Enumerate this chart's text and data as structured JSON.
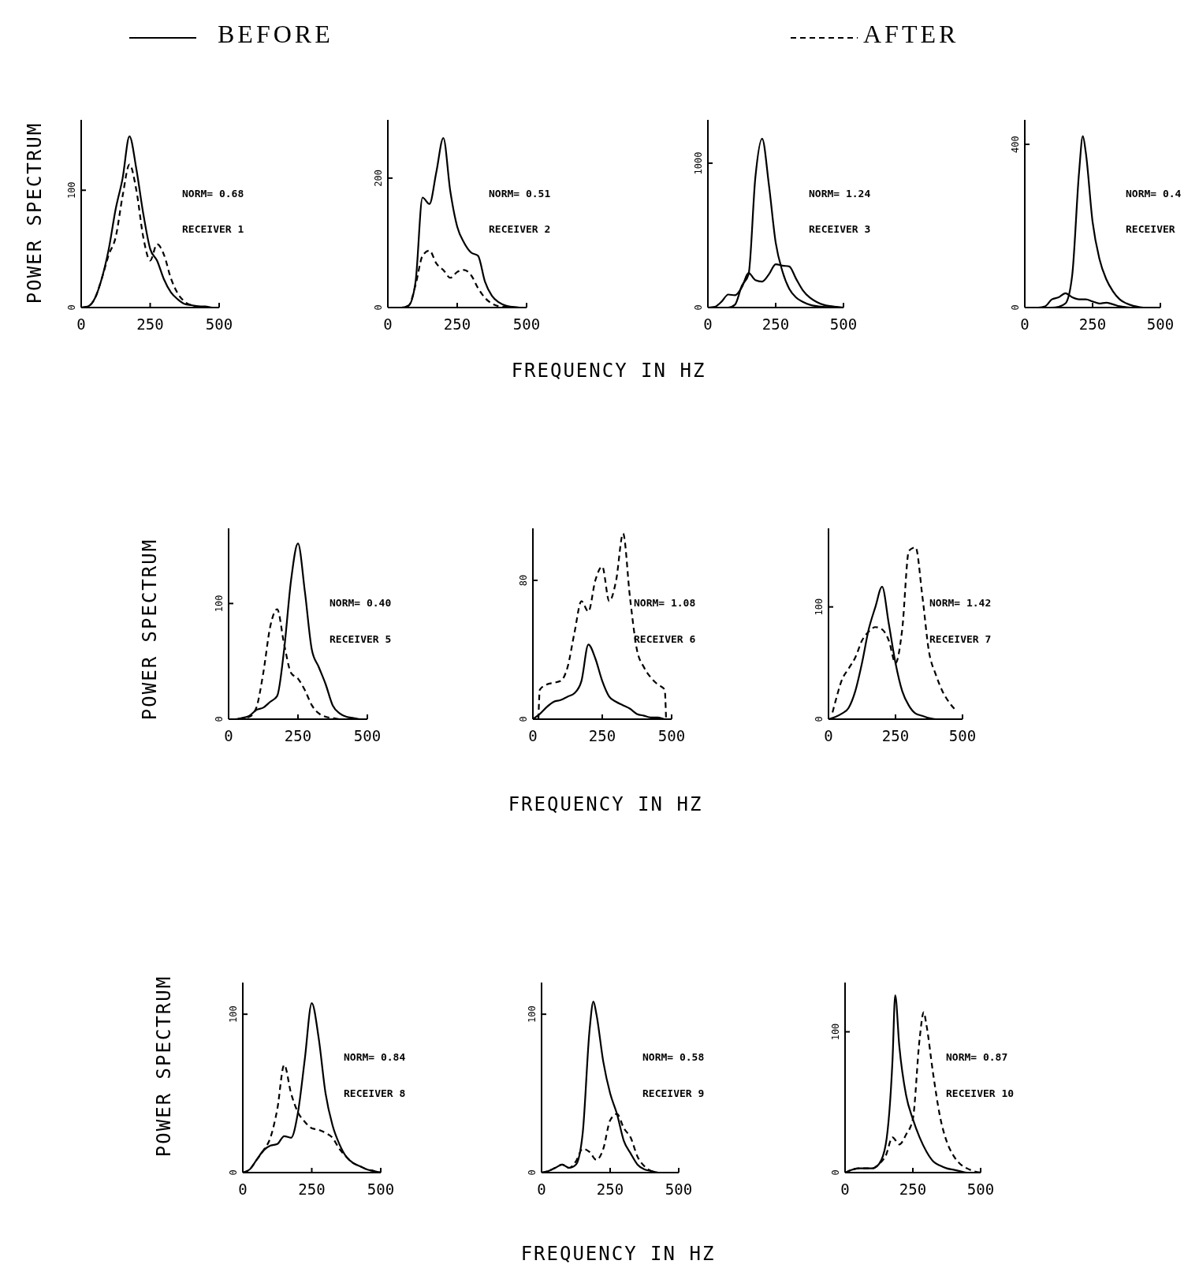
{
  "chart_data": [
    {
      "type": "line",
      "legend": "top",
      "ylabel": "POWER SPECTRUM",
      "x": [
        0,
        25,
        50,
        75,
        100,
        125,
        150,
        175,
        200,
        225,
        250,
        275,
        300,
        325,
        350,
        375,
        400,
        425,
        450,
        475,
        500
      ],
      "xlim": [
        0,
        500
      ],
      "xticks": [
        0,
        250,
        500
      ],
      "ylim": [
        0,
        160
      ],
      "yticks": [
        0,
        100
      ],
      "annotations": [
        "NORM= 0.68",
        "RECEIVER 1"
      ],
      "series": [
        {
          "name": "BEFORE",
          "color": "#000000",
          "line_style": "solid",
          "values": [
            0,
            1,
            8,
            25,
            50,
            84,
            110,
            146,
            118,
            80,
            50,
            40,
            24,
            13,
            7,
            3,
            2,
            1,
            1,
            0,
            0
          ]
        },
        {
          "name": "AFTER",
          "color": "#000000",
          "line_style": "dashed",
          "values": [
            0,
            1,
            8,
            25,
            45,
            60,
            95,
            122,
            100,
            60,
            40,
            54,
            45,
            25,
            12,
            5,
            2,
            1,
            0,
            0,
            0
          ]
        }
      ]
    },
    {
      "type": "line",
      "xlabel": "FREQUENCY IN HZ",
      "x": [
        0,
        25,
        50,
        75,
        100,
        125,
        150,
        175,
        200,
        225,
        250,
        275,
        300,
        325,
        350,
        375,
        400,
        425,
        450,
        475,
        500
      ],
      "xlim": [
        0,
        500
      ],
      "xticks": [
        0,
        250,
        500
      ],
      "ylim": [
        0,
        290
      ],
      "yticks": [
        0,
        200
      ],
      "annotations": [
        "NORM= 0.51",
        "RECEIVER 2"
      ],
      "series": [
        {
          "color": "#000000",
          "line_style": "solid",
          "values": [
            0,
            0,
            0,
            3,
            40,
            170,
            160,
            210,
            262,
            180,
            125,
            100,
            85,
            80,
            40,
            18,
            8,
            3,
            1,
            0,
            0
          ]
        },
        {
          "color": "#000000",
          "line_style": "dashed",
          "values": [
            0,
            0,
            0,
            3,
            35,
            80,
            88,
            68,
            58,
            46,
            55,
            58,
            50,
            30,
            15,
            6,
            2,
            1,
            0,
            0,
            0
          ]
        }
      ]
    },
    {
      "type": "line",
      "x": [
        0,
        25,
        50,
        75,
        100,
        125,
        150,
        175,
        200,
        225,
        250,
        275,
        300,
        325,
        350,
        375,
        400,
        425,
        450,
        475,
        500
      ],
      "xlim": [
        0,
        500
      ],
      "xticks": [
        0,
        250,
        500
      ],
      "ylim": [
        0,
        1300
      ],
      "yticks": [
        0,
        1000
      ],
      "annotations": [
        "NORM= 1.24",
        "RECEIVER 3"
      ],
      "series": [
        {
          "color": "#000000",
          "line_style": "solid",
          "values": [
            0,
            0,
            0,
            0,
            20,
            150,
            230,
            900,
            1170,
            850,
            450,
            250,
            130,
            70,
            40,
            20,
            10,
            5,
            2,
            0,
            0
          ]
        },
        {
          "color": "#000000",
          "line_style": "solid",
          "values": [
            0,
            5,
            40,
            90,
            85,
            140,
            240,
            190,
            180,
            230,
            300,
            290,
            285,
            200,
            120,
            70,
            40,
            20,
            10,
            5,
            0
          ]
        }
      ]
    },
    {
      "type": "line",
      "x": [
        0,
        25,
        50,
        75,
        100,
        125,
        150,
        175,
        200,
        225,
        250,
        275,
        300,
        325,
        350,
        375,
        400,
        425,
        450,
        475,
        500
      ],
      "xlim": [
        0,
        500
      ],
      "xticks": [
        0,
        250,
        500
      ],
      "ylim": [
        0,
        460
      ],
      "yticks": [
        0,
        400
      ],
      "annotations": [
        "NORM= 0.4",
        "RECEIVER"
      ],
      "series": [
        {
          "color": "#000000",
          "line_style": "solid",
          "x": [
            0,
            25,
            50,
            75,
            100,
            125,
            150,
            175,
            200,
            214,
            225,
            250,
            275,
            300,
            325,
            350,
            375,
            400,
            425,
            450,
            475,
            500
          ],
          "values": [
            0,
            0,
            0,
            0,
            0,
            2,
            10,
            80,
            330,
            420,
            380,
            210,
            120,
            70,
            40,
            20,
            10,
            4,
            1,
            0,
            0,
            0
          ]
        },
        {
          "color": "#000000",
          "line_style": "solid",
          "values": [
            0,
            0,
            0,
            3,
            20,
            25,
            35,
            25,
            20,
            20,
            15,
            10,
            12,
            8,
            3,
            1,
            0,
            0,
            0,
            0,
            0
          ]
        }
      ]
    },
    {
      "type": "line",
      "ylabel": "POWER SPECTRUM",
      "x": [
        0,
        25,
        50,
        75,
        100,
        125,
        150,
        175,
        200,
        225,
        250,
        275,
        300,
        325,
        350,
        375,
        400,
        425,
        450,
        475,
        500
      ],
      "xlim": [
        0,
        500
      ],
      "xticks": [
        0,
        250,
        500
      ],
      "ylim": [
        0,
        165
      ],
      "yticks": [
        0,
        100
      ],
      "annotations": [
        "NORM= 0.40",
        "RECEIVER 5"
      ],
      "series": [
        {
          "color": "#000000",
          "line_style": "solid",
          "values": [
            0,
            0,
            1,
            3,
            8,
            10,
            15,
            20,
            60,
            120,
            152,
            110,
            60,
            45,
            30,
            12,
            5,
            2,
            1,
            0,
            0
          ]
        },
        {
          "color": "#000000",
          "line_style": "dashed",
          "values": [
            0,
            0,
            1,
            2,
            10,
            40,
            80,
            95,
            65,
            40,
            35,
            25,
            12,
            5,
            2,
            1,
            0,
            0,
            0,
            0,
            0
          ]
        }
      ]
    },
    {
      "type": "line",
      "xlabel": "FREQUENCY IN HZ",
      "x": [
        0,
        25,
        50,
        75,
        100,
        125,
        150,
        175,
        200,
        225,
        250,
        275,
        300,
        325,
        350,
        375,
        400,
        425,
        450,
        475,
        500
      ],
      "xlim": [
        0,
        500
      ],
      "xticks": [
        0,
        250,
        500
      ],
      "ylim": [
        0,
        110
      ],
      "yticks": [
        0,
        80
      ],
      "annotations": [
        "NORM= 1.08",
        "RECEIVER 6"
      ],
      "series": [
        {
          "color": "#000000",
          "line_style": "solid",
          "values": [
            0,
            3,
            7,
            10,
            11,
            13,
            15,
            22,
            43,
            35,
            22,
            13,
            10,
            8,
            6,
            3,
            2,
            1,
            1,
            0,
            0
          ]
        },
        {
          "color": "#000000",
          "line_style": "dashed",
          "x": [
            20,
            25,
            50,
            75,
            100,
            125,
            150,
            175,
            200,
            225,
            250,
            275,
            300,
            325,
            350,
            375,
            400,
            425,
            450,
            475,
            480
          ],
          "values": [
            0,
            17,
            20,
            21,
            22,
            30,
            50,
            68,
            62,
            80,
            88,
            68,
            80,
            107,
            70,
            40,
            30,
            24,
            20,
            17,
            0
          ]
        }
      ]
    },
    {
      "type": "line",
      "x": [
        0,
        25,
        50,
        75,
        100,
        125,
        150,
        175,
        200,
        225,
        250,
        275,
        300,
        325,
        350,
        375,
        400,
        425,
        450,
        475,
        500
      ],
      "xlim": [
        0,
        500
      ],
      "xticks": [
        0,
        250,
        500
      ],
      "ylim": [
        0,
        170
      ],
      "yticks": [
        0,
        100
      ],
      "annotations": [
        "NORM= 1.42",
        "RECEIVER 7"
      ],
      "series": [
        {
          "color": "#000000",
          "line_style": "solid",
          "values": [
            0,
            2,
            5,
            10,
            25,
            50,
            80,
            100,
            118,
            85,
            50,
            25,
            12,
            5,
            3,
            1,
            0,
            0,
            0,
            0,
            0
          ]
        },
        {
          "color": "#000000",
          "line_style": "dashed",
          "x": [
            15,
            25,
            50,
            75,
            100,
            125,
            150,
            175,
            200,
            225,
            250,
            275,
            300,
            325,
            350,
            375,
            400,
            425,
            450,
            475
          ],
          "values": [
            6,
            15,
            35,
            45,
            55,
            70,
            78,
            82,
            80,
            70,
            50,
            80,
            150,
            153,
            110,
            60,
            40,
            25,
            15,
            8
          ]
        }
      ]
    },
    {
      "type": "line",
      "ylabel": "POWER SPECTRUM",
      "x": [
        0,
        25,
        50,
        75,
        100,
        125,
        150,
        175,
        200,
        225,
        250,
        275,
        300,
        325,
        350,
        375,
        400,
        425,
        450,
        475,
        500
      ],
      "xlim": [
        0,
        500
      ],
      "xticks": [
        0,
        250,
        500
      ],
      "ylim": [
        0,
        120
      ],
      "yticks": [
        0,
        100
      ],
      "annotations": [
        "NORM= 0.84",
        "RECEIVER 8"
      ],
      "series": [
        {
          "color": "#000000",
          "line_style": "solid",
          "values": [
            0,
            2,
            8,
            14,
            17,
            18,
            23,
            22,
            38,
            72,
            107,
            85,
            50,
            30,
            18,
            10,
            6,
            4,
            2,
            1,
            0
          ]
        },
        {
          "color": "#000000",
          "line_style": "dashed",
          "values": [
            0,
            2,
            8,
            14,
            22,
            40,
            68,
            50,
            38,
            32,
            28,
            27,
            25,
            22,
            15,
            10,
            6,
            4,
            2,
            1,
            0
          ]
        }
      ]
    },
    {
      "type": "line",
      "xlabel": "FREQUENCY IN HZ",
      "x": [
        0,
        25,
        50,
        75,
        100,
        125,
        150,
        175,
        200,
        225,
        250,
        275,
        300,
        325,
        350,
        375,
        400,
        425,
        450,
        475,
        500
      ],
      "xlim": [
        0,
        500
      ],
      "xticks": [
        0,
        250,
        500
      ],
      "ylim": [
        0,
        120
      ],
      "yticks": [
        0,
        100
      ],
      "annotations": [
        "NORM= 0.58",
        "RECEIVER 9"
      ],
      "series": [
        {
          "color": "#000000",
          "line_style": "solid",
          "x": [
            0,
            25,
            50,
            75,
            100,
            125,
            150,
            175,
            189,
            200,
            225,
            250,
            275,
            300,
            325,
            350,
            375,
            400,
            425,
            450,
            475,
            500
          ],
          "values": [
            0,
            1,
            3,
            5,
            3,
            5,
            25,
            90,
            108,
            100,
            70,
            50,
            37,
            20,
            12,
            5,
            2,
            1,
            0,
            0,
            0,
            0
          ]
        },
        {
          "color": "#000000",
          "line_style": "dashed",
          "values": [
            0,
            1,
            3,
            5,
            3,
            7,
            15,
            13,
            8,
            15,
            33,
            37,
            28,
            22,
            10,
            4,
            1,
            0,
            0,
            0,
            0
          ]
        }
      ]
    },
    {
      "type": "line",
      "xlim": [
        0,
        500
      ],
      "xticks": [
        0,
        250,
        500
      ],
      "ylim": [
        0,
        135
      ],
      "yticks": [
        0,
        100
      ],
      "annotations": [
        "NORM= 0.87",
        "RECEIVER 10"
      ],
      "series": [
        {
          "color": "#000000",
          "line_style": "solid",
          "x": [
            0,
            25,
            50,
            75,
            100,
            125,
            150,
            175,
            185,
            200,
            225,
            250,
            275,
            300,
            325,
            350,
            375,
            400,
            425,
            450,
            475,
            500
          ],
          "values": [
            0,
            2,
            3,
            3,
            3,
            6,
            20,
            80,
            126,
            90,
            55,
            38,
            25,
            15,
            8,
            5,
            3,
            2,
            1,
            0,
            0,
            0
          ]
        },
        {
          "color": "#000000",
          "line_style": "dashed",
          "x": [
            0,
            25,
            50,
            75,
            100,
            125,
            150,
            175,
            200,
            225,
            250,
            275,
            290,
            300,
            325,
            350,
            375,
            400,
            425,
            450,
            475,
            500
          ],
          "values": [
            0,
            2,
            3,
            3,
            3,
            6,
            12,
            25,
            20,
            27,
            38,
            95,
            114,
            105,
            70,
            40,
            22,
            12,
            6,
            3,
            1,
            0
          ]
        }
      ]
    }
  ]
}
